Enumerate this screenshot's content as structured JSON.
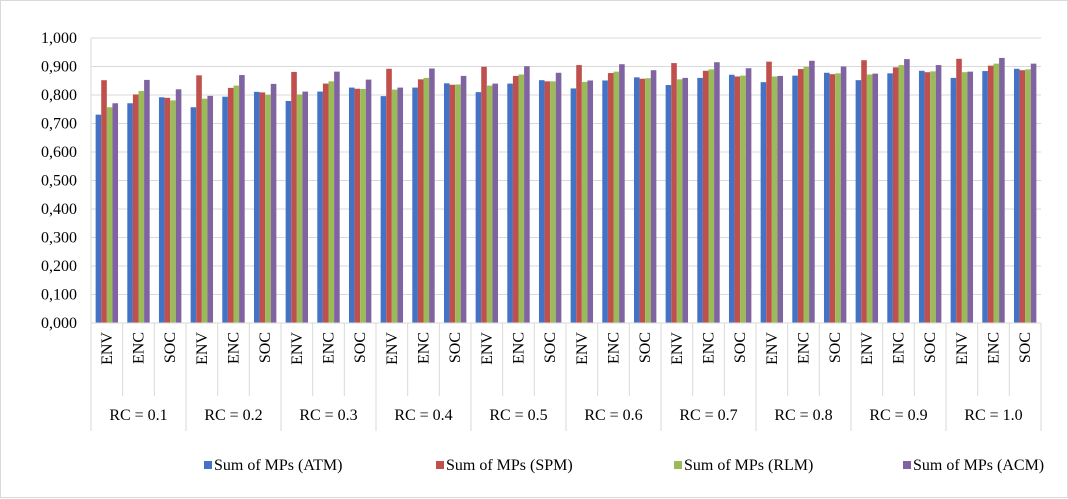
{
  "chart_data": {
    "type": "bar",
    "title": "",
    "xlabel": "",
    "ylabel": "",
    "ylim": [
      0,
      1
    ],
    "ytick_labels": [
      "0,000",
      "0,100",
      "0,200",
      "0,300",
      "0,400",
      "0,500",
      "0,600",
      "0,700",
      "0,800",
      "0,900",
      "1,000"
    ],
    "grid": "horizontal",
    "legend_position": "bottom",
    "groups": [
      "RC = 0.1",
      "RC = 0.2",
      "RC = 0.3",
      "RC = 0.4",
      "RC = 0.5",
      "RC = 0.6",
      "RC = 0.7",
      "RC = 0.8",
      "RC = 0.9",
      "RC = 1.0"
    ],
    "subcategories": [
      "ENV",
      "ENC",
      "SOC"
    ],
    "series": [
      {
        "name": "Sum of MPs (ATM)",
        "color": "#4472c4",
        "values": [
          0.731,
          0.771,
          0.792,
          0.757,
          0.794,
          0.811,
          0.779,
          0.812,
          0.826,
          0.796,
          0.826,
          0.841,
          0.81,
          0.84,
          0.852,
          0.823,
          0.851,
          0.862,
          0.835,
          0.86,
          0.871,
          0.845,
          0.868,
          0.878,
          0.852,
          0.876,
          0.885,
          0.86,
          0.884,
          0.892
        ]
      },
      {
        "name": "Sum of MPs (SPM)",
        "color": "#c0504d",
        "values": [
          0.852,
          0.802,
          0.79,
          0.869,
          0.825,
          0.809,
          0.881,
          0.84,
          0.822,
          0.892,
          0.855,
          0.836,
          0.899,
          0.867,
          0.848,
          0.905,
          0.877,
          0.857,
          0.912,
          0.885,
          0.865,
          0.917,
          0.891,
          0.873,
          0.922,
          0.897,
          0.88,
          0.927,
          0.903,
          0.887
        ]
      },
      {
        "name": "Sum of MPs (RLM)",
        "color": "#9bbb59",
        "values": [
          0.757,
          0.814,
          0.781,
          0.787,
          0.833,
          0.801,
          0.802,
          0.848,
          0.821,
          0.819,
          0.86,
          0.837,
          0.833,
          0.872,
          0.848,
          0.846,
          0.882,
          0.859,
          0.855,
          0.89,
          0.868,
          0.865,
          0.899,
          0.876,
          0.872,
          0.905,
          0.883,
          0.88,
          0.91,
          0.89
        ]
      },
      {
        "name": "Sum of MPs (ACM)",
        "color": "#8064a2",
        "values": [
          0.771,
          0.853,
          0.82,
          0.797,
          0.87,
          0.839,
          0.812,
          0.882,
          0.854,
          0.826,
          0.893,
          0.867,
          0.84,
          0.901,
          0.878,
          0.851,
          0.908,
          0.887,
          0.86,
          0.915,
          0.894,
          0.867,
          0.92,
          0.9,
          0.875,
          0.926,
          0.905,
          0.882,
          0.93,
          0.91
        ]
      }
    ]
  }
}
